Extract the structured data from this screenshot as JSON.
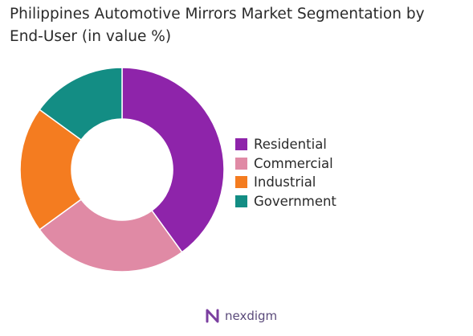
{
  "title_lines": [
    "Philippines Automotive Mirrors Market Segmentation by",
    "End-User (in value %)"
  ],
  "chart_data": {
    "type": "pie",
    "variant": "donut",
    "title": "Philippines Automotive Mirrors Market Segmentation by End-User (in value %)",
    "categories": [
      "Residential",
      "Commercial",
      "Industrial",
      "Government"
    ],
    "values": [
      40,
      25,
      20,
      15
    ],
    "colors": [
      "#8e24aa",
      "#e08aa5",
      "#f47c20",
      "#138d84"
    ],
    "legend_position": "right"
  },
  "brand": {
    "name": "nexdigm"
  }
}
